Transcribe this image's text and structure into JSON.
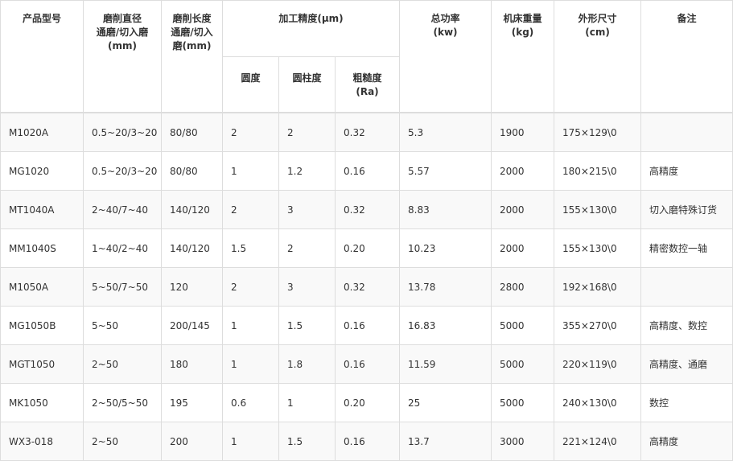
{
  "headers": {
    "model": "产品型号",
    "diameter": [
      "磨削直径",
      "通磨/切入磨",
      "(mm)"
    ],
    "length": [
      "磨削长度",
      "通磨/切入",
      "磨(mm)"
    ],
    "precision": "加工精度(μm)",
    "roundness": "圆度",
    "cylindricity": "圆柱度",
    "roughness": [
      "粗糙度",
      "(Ra)"
    ],
    "power": [
      "总功率",
      "(kw)"
    ],
    "weight": [
      "机床重量",
      "(kg)"
    ],
    "dimensions": [
      "外形尺寸",
      "(cm)"
    ],
    "notes": "备注"
  },
  "rows": [
    [
      "M1020A",
      "0.5~20/3~20",
      "80/80",
      "2",
      "2",
      "0.32",
      "5.3",
      "1900",
      "175×129\\0",
      ""
    ],
    [
      "MG1020",
      "0.5~20/3~20",
      "80/80",
      "1",
      "1.2",
      "0.16",
      "5.57",
      "2000",
      "180×215\\0",
      "高精度"
    ],
    [
      "MT1040A",
      "2~40/7~40",
      "140/120",
      "2",
      "3",
      "0.32",
      "8.83",
      "2000",
      "155×130\\0",
      "切入磨特殊订货"
    ],
    [
      "MM1040S",
      "1~40/2~40",
      "140/120",
      "1.5",
      "2",
      "0.20",
      "10.23",
      "2000",
      "155×130\\0",
      "精密数控一轴"
    ],
    [
      "M1050A",
      "5~50/7~50",
      "120",
      "2",
      "3",
      "0.32",
      "13.78",
      "2800",
      "192×168\\0",
      ""
    ],
    [
      "MG1050B",
      "5~50",
      "200/145",
      "1",
      "1.5",
      "0.16",
      "16.83",
      "5000",
      "355×270\\0",
      "高精度、数控"
    ],
    [
      "MGT1050",
      "2~50",
      "180",
      "1",
      "1.8",
      "0.16",
      "11.59",
      "5000",
      "220×119\\0",
      "高精度、通磨"
    ],
    [
      "MK1050",
      "2~50/5~50",
      "195",
      "0.6",
      "1",
      "0.20",
      "25",
      "5000",
      "240×130\\0",
      "数控"
    ],
    [
      "WX3-018",
      "2~50",
      "200",
      "1",
      "1.5",
      "0.16",
      "13.7",
      "3000",
      "221×124\\0",
      "高精度"
    ]
  ]
}
